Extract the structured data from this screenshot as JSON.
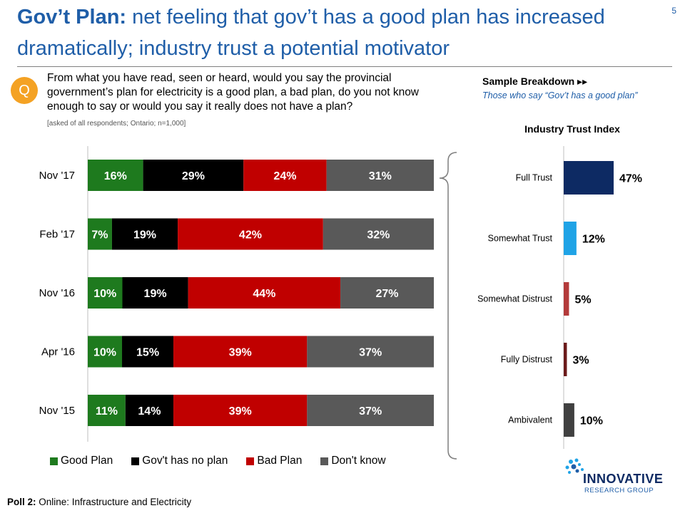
{
  "header": {
    "title_bold": "Gov’t Plan:",
    "title_rest": " net feeling that gov’t has a good plan has increased dramatically; industry trust a potential motivator",
    "page_number": "5"
  },
  "question": {
    "badge": "Q",
    "text": "From what you have read, seen or heard, would you say the provincial government’s plan for electricity is a good plan, a bad plan, do you not know enough to say or would you say it really does not have a plan?",
    "note": "[asked of all respondents; Ontario; n=1,000]"
  },
  "sample_breakdown": {
    "title": "Sample Breakdown",
    "subtitle": "Those who say “Gov’t has a good plan”"
  },
  "footer": {
    "label": "Poll 2:",
    "text": " Online: Infrastructure and Electricity"
  },
  "logo": {
    "name": "INNOVATIVE",
    "sub": "RESEARCH GROUP"
  },
  "colors": {
    "good_plan": "#1e7a1e",
    "no_plan": "#000000",
    "bad_plan": "#c00000",
    "dont_know": "#595959",
    "full_trust": "#0d2a63",
    "somewhat_trust": "#1fa3e6",
    "somewhat_distrust": "#b33a3a",
    "fully_distrust": "#6b1a1a",
    "ambivalent": "#404040",
    "title_blue": "#1f5ea8",
    "badge_orange": "#f4a224"
  },
  "chart_data": [
    {
      "type": "bar",
      "orientation": "horizontal",
      "stacked": true,
      "categories": [
        "Nov '17",
        "Feb '17",
        "Nov '16",
        "Apr '16",
        "Nov '15"
      ],
      "series": [
        {
          "name": "Good Plan",
          "values": [
            16,
            7,
            10,
            10,
            11
          ]
        },
        {
          "name": "Gov't has no plan",
          "values": [
            29,
            19,
            19,
            15,
            14
          ]
        },
        {
          "name": "Bad Plan",
          "values": [
            24,
            42,
            44,
            39,
            39
          ]
        },
        {
          "name": "Don't know",
          "values": [
            31,
            32,
            27,
            37,
            37
          ]
        }
      ],
      "value_suffix": "%",
      "legend_position": "bottom",
      "grid": false
    },
    {
      "type": "bar",
      "orientation": "horizontal",
      "title": "Industry Trust Index",
      "categories": [
        "Full Trust",
        "Somewhat Trust",
        "Somewhat Distrust",
        "Fully Distrust",
        "Ambivalent"
      ],
      "values": [
        47,
        12,
        5,
        3,
        10
      ],
      "value_suffix": "%",
      "grid": false
    }
  ]
}
